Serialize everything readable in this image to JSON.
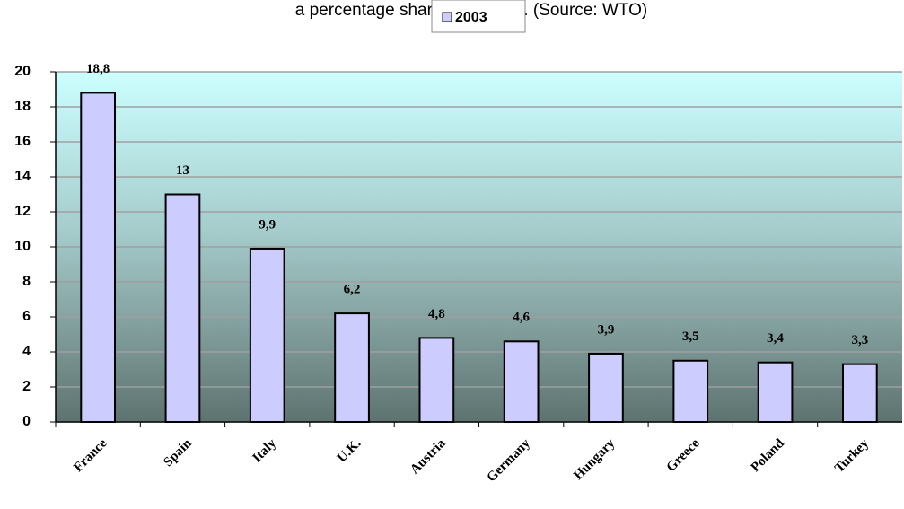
{
  "chart_data": {
    "type": "bar",
    "title": "a percentage share of market). (Source: WTO)",
    "categories": [
      "France",
      "Spain",
      "Italy",
      "U.K.",
      "Austria",
      "Germany",
      "Hungary",
      "Greece",
      "Poland",
      "Turkey"
    ],
    "series": [
      {
        "name": "2003",
        "color": "#ccccff",
        "values": [
          18.8,
          13,
          9.9,
          6.2,
          4.8,
          4.6,
          3.9,
          3.5,
          3.4,
          3.3
        ],
        "value_labels": [
          "18,8",
          "13",
          "9,9",
          "6,2",
          "4,8",
          "4,6",
          "3,9",
          "3,5",
          "3,4",
          "3,3"
        ]
      }
    ],
    "ylim": [
      0,
      20
    ],
    "yticks": [
      0,
      2,
      4,
      6,
      8,
      10,
      12,
      14,
      16,
      18,
      20
    ],
    "grid": true
  }
}
